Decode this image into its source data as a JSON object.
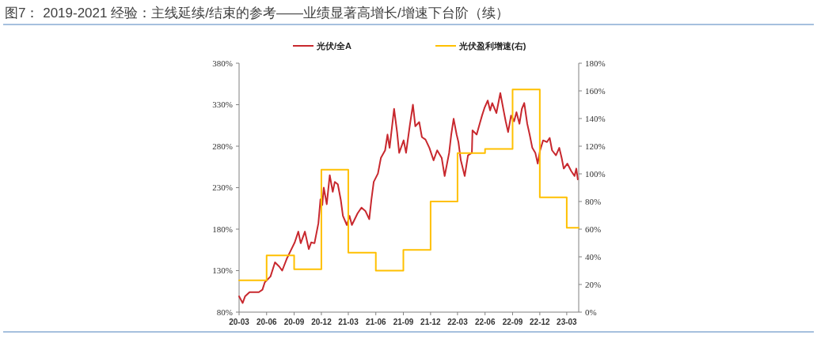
{
  "chart_data": {
    "type": "line",
    "title": "图7： 2019-2021 经验：主线延续/结束的参考——业绩显著高增长/增速下台阶（续）",
    "legend": "top",
    "grid": false,
    "xlim": [
      "2020-03-01",
      "2023-04-10"
    ],
    "xticks": [
      {
        "value": "2020-03-01",
        "label": "20-03"
      },
      {
        "value": "2020-06-01",
        "label": "20-06"
      },
      {
        "value": "2020-09-01",
        "label": "20-09"
      },
      {
        "value": "2020-12-01",
        "label": "20-12"
      },
      {
        "value": "2021-03-01",
        "label": "21-03"
      },
      {
        "value": "2021-06-01",
        "label": "21-06"
      },
      {
        "value": "2021-09-01",
        "label": "21-09"
      },
      {
        "value": "2021-12-01",
        "label": "21-12"
      },
      {
        "value": "2022-03-01",
        "label": "22-03"
      },
      {
        "value": "2022-06-01",
        "label": "22-06"
      },
      {
        "value": "2022-09-01",
        "label": "22-09"
      },
      {
        "value": "2022-12-01",
        "label": "22-12"
      },
      {
        "value": "2023-03-01",
        "label": "23-03"
      }
    ],
    "ylim": [
      80,
      380
    ],
    "yticks": [
      {
        "value": 80,
        "label": "80%"
      },
      {
        "value": 130,
        "label": "130%"
      },
      {
        "value": 180,
        "label": "180%"
      },
      {
        "value": 230,
        "label": "230%"
      },
      {
        "value": 280,
        "label": "280%"
      },
      {
        "value": 330,
        "label": "330%"
      },
      {
        "value": 380,
        "label": "380%"
      }
    ],
    "y2lim": [
      0,
      180
    ],
    "y2ticks": [
      {
        "value": 0,
        "label": "0%"
      },
      {
        "value": 20,
        "label": "20%"
      },
      {
        "value": 40,
        "label": "40%"
      },
      {
        "value": 60,
        "label": "60%"
      },
      {
        "value": 80,
        "label": "80%"
      },
      {
        "value": 100,
        "label": "100%"
      },
      {
        "value": 120,
        "label": "120%"
      },
      {
        "value": 140,
        "label": "140%"
      },
      {
        "value": 160,
        "label": "160%"
      },
      {
        "value": 180,
        "label": "180%"
      }
    ],
    "series": [
      {
        "name": "光伏/全A",
        "color": "#c8282e",
        "x": [
          "2020-03-01",
          "2020-03-13",
          "2020-03-21",
          "2020-04-05",
          "2020-05-06",
          "2020-05-18",
          "2020-05-26",
          "2020-06-14",
          "2020-06-29",
          "2020-07-13",
          "2020-07-23",
          "2020-08-07",
          "2020-08-19",
          "2020-09-03",
          "2020-09-15",
          "2020-09-23",
          "2020-10-07",
          "2020-10-20",
          "2020-10-28",
          "2020-11-08",
          "2020-11-21",
          "2020-11-28",
          "2020-12-04",
          "2020-12-09",
          "2020-12-19",
          "2020-12-29",
          "2021-01-08",
          "2021-01-15",
          "2021-01-25",
          "2021-02-04",
          "2021-02-11",
          "2021-02-24",
          "2021-03-05",
          "2021-03-13",
          "2021-04-01",
          "2021-04-14",
          "2021-04-27",
          "2021-05-10",
          "2021-05-17",
          "2021-05-25",
          "2021-06-08",
          "2021-06-18",
          "2021-07-02",
          "2021-07-10",
          "2021-07-17",
          "2021-08-01",
          "2021-08-11",
          "2021-08-18",
          "2021-09-02",
          "2021-09-10",
          "2021-09-23",
          "2021-10-03",
          "2021-10-11",
          "2021-10-24",
          "2021-11-02",
          "2021-11-14",
          "2021-11-27",
          "2021-12-11",
          "2021-12-23",
          "2022-01-07",
          "2022-01-17",
          "2022-02-01",
          "2022-02-08",
          "2022-02-16",
          "2022-02-26",
          "2022-03-04",
          "2022-03-12",
          "2022-03-25",
          "2022-04-05",
          "2022-04-18",
          "2022-04-20",
          "2022-05-04",
          "2022-05-14",
          "2022-05-22",
          "2022-05-30",
          "2022-06-10",
          "2022-06-18",
          "2022-06-25",
          "2022-07-09",
          "2022-07-22",
          "2022-08-02",
          "2022-08-09",
          "2022-08-17",
          "2022-08-27",
          "2022-09-06",
          "2022-09-14",
          "2022-09-24",
          "2022-10-02",
          "2022-10-10",
          "2022-10-20",
          "2022-10-28",
          "2022-11-06",
          "2022-11-16",
          "2022-11-24",
          "2022-12-02",
          "2022-12-12",
          "2022-12-25",
          "2023-01-03",
          "2023-01-11",
          "2023-01-24",
          "2023-02-04",
          "2023-02-12",
          "2023-02-19",
          "2023-03-03",
          "2023-03-16",
          "2023-03-27",
          "2023-04-02",
          "2023-04-07"
        ],
        "values": [
          99,
          91,
          99,
          104,
          104,
          107,
          116,
          123,
          140,
          135,
          130,
          144,
          153,
          164,
          177,
          163,
          177,
          156,
          164,
          163,
          187,
          216,
          209,
          230,
          210,
          245,
          225,
          237,
          234,
          215,
          196,
          185,
          196,
          185,
          199,
          206,
          202,
          192,
          215,
          237,
          247,
          266,
          275,
          294,
          278,
          325,
          297,
          272,
          287,
          272,
          306,
          330,
          304,
          309,
          291,
          288,
          278,
          263,
          275,
          266,
          244,
          272,
          294,
          313,
          294,
          285,
          263,
          244,
          269,
          272,
          299,
          294,
          307,
          317,
          326,
          335,
          323,
          332,
          320,
          344,
          323,
          310,
          297,
          317,
          310,
          321,
          307,
          325,
          332,
          307,
          294,
          278,
          272,
          259,
          275,
          287,
          285,
          290,
          275,
          269,
          278,
          266,
          253,
          259,
          250,
          244,
          253,
          240
        ]
      },
      {
        "name": "光伏盈利增速(右)",
        "type": "step",
        "axis": "y2",
        "color": "#ffc000",
        "x": [
          "2020-03-01",
          "2020-06-01",
          "2020-09-01",
          "2020-12-01",
          "2021-03-01",
          "2021-06-01",
          "2021-09-01",
          "2021-12-01",
          "2022-03-01",
          "2022-06-01",
          "2022-09-01",
          "2022-12-01",
          "2023-03-01",
          "2023-04-10"
        ],
        "values": [
          23,
          41,
          31,
          103,
          43,
          30,
          45,
          80,
          115,
          118,
          161,
          83,
          61,
          61
        ]
      }
    ]
  }
}
